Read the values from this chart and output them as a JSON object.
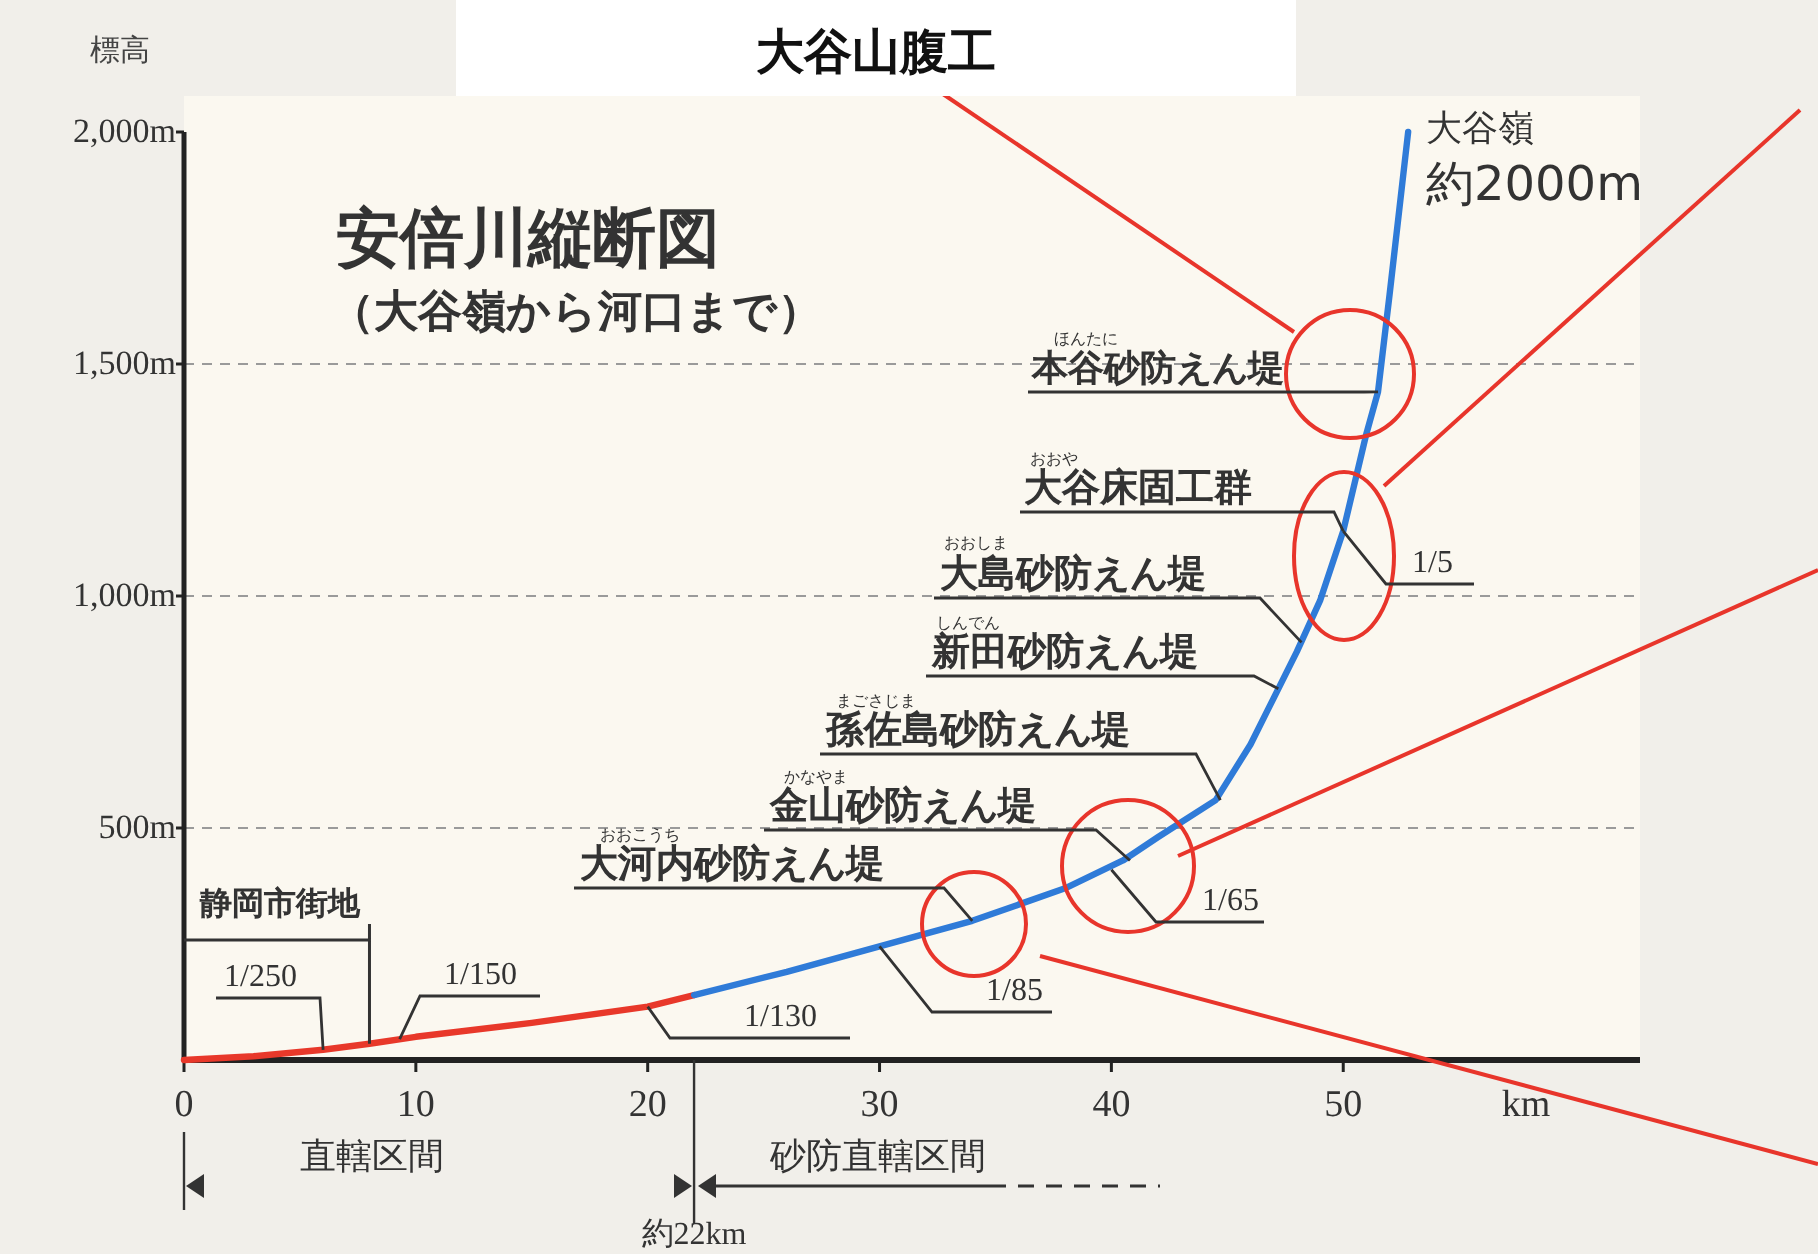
{
  "chart_data": {
    "type": "line",
    "title": "大谷山腹工",
    "subtitle": "安倍川縦断図",
    "ylabel": "標高",
    "xlabel": "km",
    "xlim": [
      0,
      62.8
    ],
    "ylim": [
      0,
      2000
    ],
    "xticks": [
      0,
      10,
      20,
      30,
      40,
      50
    ],
    "yticks": [
      {
        "value": 500,
        "label": "500m"
      },
      {
        "value": 1000,
        "label": "1,000m"
      },
      {
        "value": 1500,
        "label": "1,500m"
      },
      {
        "value": 2000,
        "label": "2,000m"
      }
    ],
    "grid": "y",
    "series": [
      {
        "color": "#e8382a",
        "x": [
          0,
          3,
          6,
          8,
          10,
          15,
          20,
          22
        ],
        "values": [
          0,
          8,
          22,
          35,
          50,
          80,
          115,
          140
        ]
      },
      {
        "color": "#2f7bd8",
        "x": [
          22,
          26,
          30,
          34,
          38,
          40.5,
          42,
          44.5,
          46,
          47,
          48,
          49,
          50,
          51,
          51.5,
          52,
          52.8
        ],
        "values": [
          140,
          190,
          245,
          300,
          370,
          430,
          480,
          560,
          680,
          780,
          880,
          990,
          1140,
          1350,
          1440,
          1650,
          2000
        ]
      }
    ],
    "annotations": [
      {
        "text": "本谷砂防えん堤",
        "x": 51.5,
        "y": 1440
      },
      {
        "text": "大谷床固工群",
        "x": 50,
        "y": 1140
      },
      {
        "text": "大島砂防えん堤",
        "x": 48.2,
        "y": 900
      },
      {
        "text": "新田砂防えん堤",
        "x": 47.2,
        "y": 800
      },
      {
        "text": "孫佐島砂防えん堤",
        "x": 44.7,
        "y": 560
      },
      {
        "text": "金山砂防えん堤",
        "x": 40.8,
        "y": 430
      },
      {
        "text": "大河内砂防えん堤",
        "x": 34,
        "y": 300
      },
      {
        "text": "1/250",
        "x": 6,
        "y": 22
      },
      {
        "text": "1/150",
        "x": 9.3,
        "y": 45
      },
      {
        "text": "1/130",
        "x": 20,
        "y": 115
      },
      {
        "text": "1/85",
        "x": 30,
        "y": 245
      },
      {
        "text": "1/65",
        "x": 40,
        "y": 410
      },
      {
        "text": "1/5",
        "x": 50,
        "y": 1140
      },
      "大谷嶺",
      "約2000m",
      "（大谷嶺から河口まで）",
      "ほんたに",
      "おおや",
      "おおしま",
      "しんでん",
      "まごさじま",
      "かなやま",
      "おおこうち",
      {
        "text": "静岡市街地",
        "x": 8,
        "y": 35
      },
      "直轄区間",
      "砂防直轄区間"
    ],
    "ref_lines": [
      {
        "axis": "x",
        "value": 22,
        "label": "約22km"
      }
    ]
  }
}
